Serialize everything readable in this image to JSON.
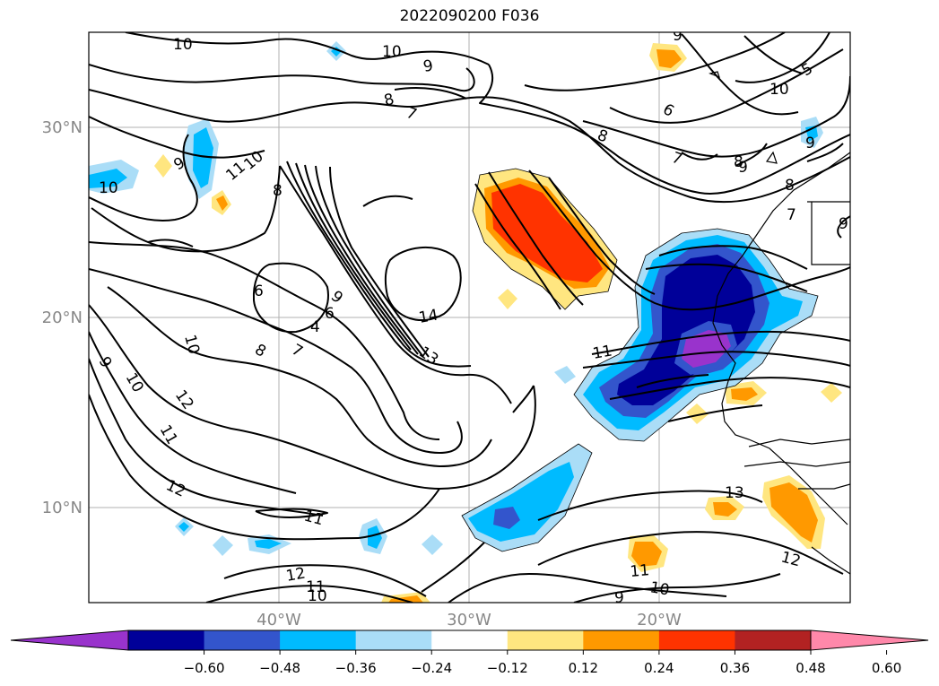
{
  "title": "2022090200 F036",
  "lat_labels": [
    "30°N",
    "20°N",
    "10°N"
  ],
  "lon_labels": [
    "40°W",
    "30°W",
    "20°W"
  ],
  "colorbar": {
    "ticks": [
      "−0.60",
      "−0.48",
      "−0.36",
      "−0.24",
      "−0.12",
      "0.12",
      "0.24",
      "0.36",
      "0.48",
      "0.60"
    ],
    "colors": [
      "#9933cc",
      "#000099",
      "#3355cc",
      "#00bbff",
      "#aaddf7",
      "#ffffff",
      "#ffe680",
      "#ff9900",
      "#ff3300",
      "#b22222",
      "#ff88aa"
    ]
  },
  "contour_labels": [
    "10",
    "10",
    "9",
    "8",
    "7",
    "8",
    "9",
    "11",
    "10",
    "8",
    "10",
    "9",
    "10",
    "6",
    "4",
    "9",
    "6",
    "8",
    "7",
    "10",
    "10",
    "12",
    "11",
    "12",
    "11",
    "14",
    "13",
    "11",
    "7",
    "8",
    "6",
    "9",
    "8",
    "7",
    "9",
    "9",
    "5",
    "9",
    "13",
    "12",
    "12",
    "11",
    "10",
    "11",
    "10",
    "9"
  ]
}
